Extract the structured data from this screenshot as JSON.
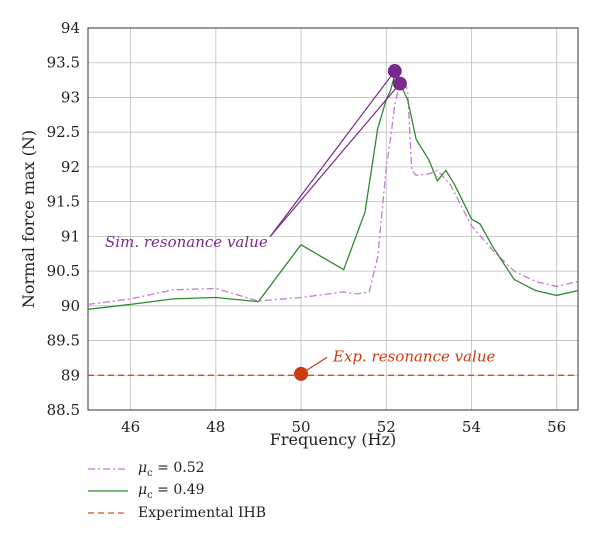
{
  "colors": {
    "sim052": "#c37bd0",
    "sim049": "#2e8b2e",
    "exp": "#dd4a1e",
    "sim_annotation": "#7a2a8c",
    "exp_annotation": "#cc3a10",
    "grid": "#bdbdbd"
  },
  "chart_data": {
    "type": "line",
    "xlabel": "Frequency (Hz)",
    "ylabel": "Normal force max (N)",
    "xlim": [
      45,
      56.5
    ],
    "ylim": [
      88.5,
      94
    ],
    "xticks": [
      "46",
      "48",
      "50",
      "52",
      "54",
      "56"
    ],
    "yticks": [
      "88.5",
      "89",
      "89.5",
      "90",
      "90.5",
      "91",
      "91.5",
      "92",
      "92.5",
      "93",
      "93.5",
      "94"
    ],
    "grid": true,
    "series": [
      {
        "name": "μc = 0.52",
        "mu_label": "μ",
        "mu_sub": "c",
        "mu_value": " = 0.52",
        "style": "dashdot",
        "x": [
          45,
          46,
          47,
          48,
          49,
          50,
          51,
          51.3,
          51.6,
          51.8,
          52.0,
          52.1,
          52.2,
          52.3,
          52.4,
          52.5,
          52.6,
          52.7,
          53.0,
          53.2,
          53.5,
          54,
          54.5,
          55,
          55.5,
          56,
          56.5
        ],
        "y": [
          90.02,
          90.1,
          90.23,
          90.25,
          90.07,
          90.12,
          90.2,
          90.17,
          90.2,
          90.7,
          92.0,
          92.4,
          92.9,
          93.15,
          93.3,
          93.1,
          91.95,
          91.88,
          91.9,
          91.95,
          91.75,
          91.15,
          90.8,
          90.5,
          90.35,
          90.28,
          90.35
        ]
      },
      {
        "name": "μc = 0.49",
        "mu_label": "μ",
        "mu_sub": "c",
        "mu_value": " = 0.49",
        "style": "solid",
        "x": [
          45,
          46,
          47,
          48,
          49,
          50,
          51,
          51.5,
          51.8,
          52.0,
          52.1,
          52.2,
          52.3,
          52.4,
          52.5,
          52.7,
          53.0,
          53.2,
          53.4,
          53.6,
          53.8,
          54,
          54.2,
          54.5,
          55,
          55.5,
          56,
          56.5
        ],
        "y": [
          89.95,
          90.02,
          90.1,
          90.12,
          90.06,
          90.88,
          90.52,
          91.35,
          92.55,
          92.97,
          93.1,
          93.33,
          93.25,
          93.1,
          92.97,
          92.4,
          92.1,
          91.8,
          91.95,
          91.75,
          91.5,
          91.25,
          91.18,
          90.85,
          90.38,
          90.22,
          90.15,
          90.22
        ]
      },
      {
        "name": "Experimental IHB",
        "style": "dashed",
        "x": [
          45,
          56.5
        ],
        "y": [
          89.0,
          89.0
        ]
      }
    ],
    "markers": [
      {
        "series": "sim",
        "x": 52.2,
        "y": 93.38
      },
      {
        "series": "sim",
        "x": 52.32,
        "y": 93.2
      },
      {
        "series": "exp",
        "x": 50.0,
        "y": 89.02
      }
    ],
    "annotations": [
      {
        "text": "Sim. resonance value",
        "x": 45.4,
        "y": 90.85
      },
      {
        "text": "Exp. resonance value",
        "x": 50.75,
        "y": 89.2
      }
    ],
    "legend_position": "below"
  }
}
